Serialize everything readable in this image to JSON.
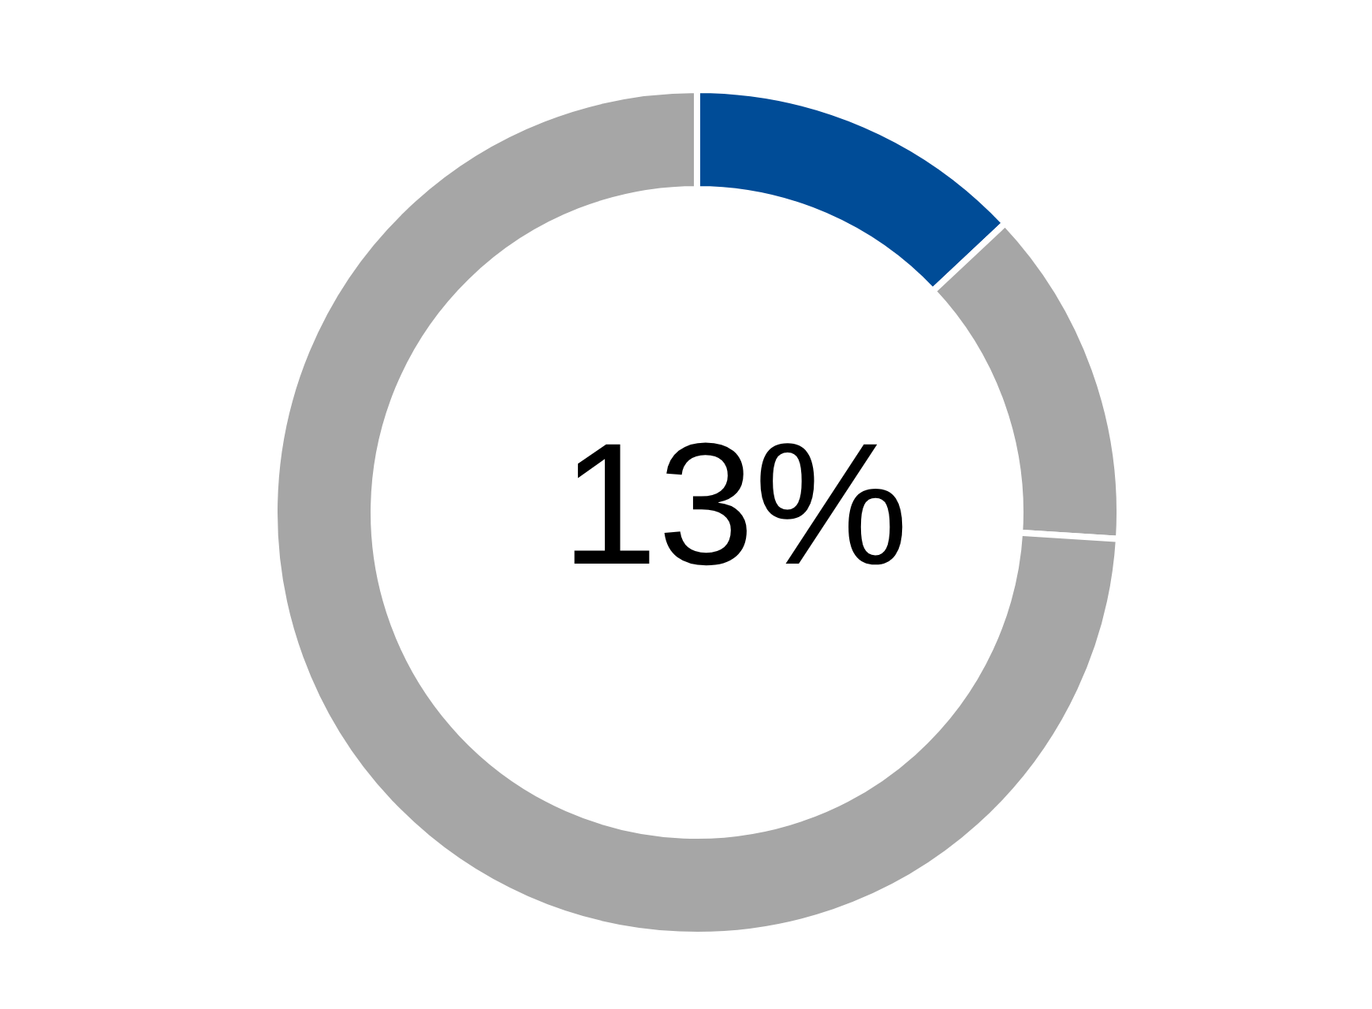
{
  "chart_data": {
    "type": "donut",
    "categories": [
      null,
      null,
      null
    ],
    "values": [
      13,
      13,
      74
    ],
    "colors": [
      "#004c97",
      "#a6a6a6",
      "#a6a6a6"
    ],
    "annotations": [
      "13%"
    ]
  }
}
